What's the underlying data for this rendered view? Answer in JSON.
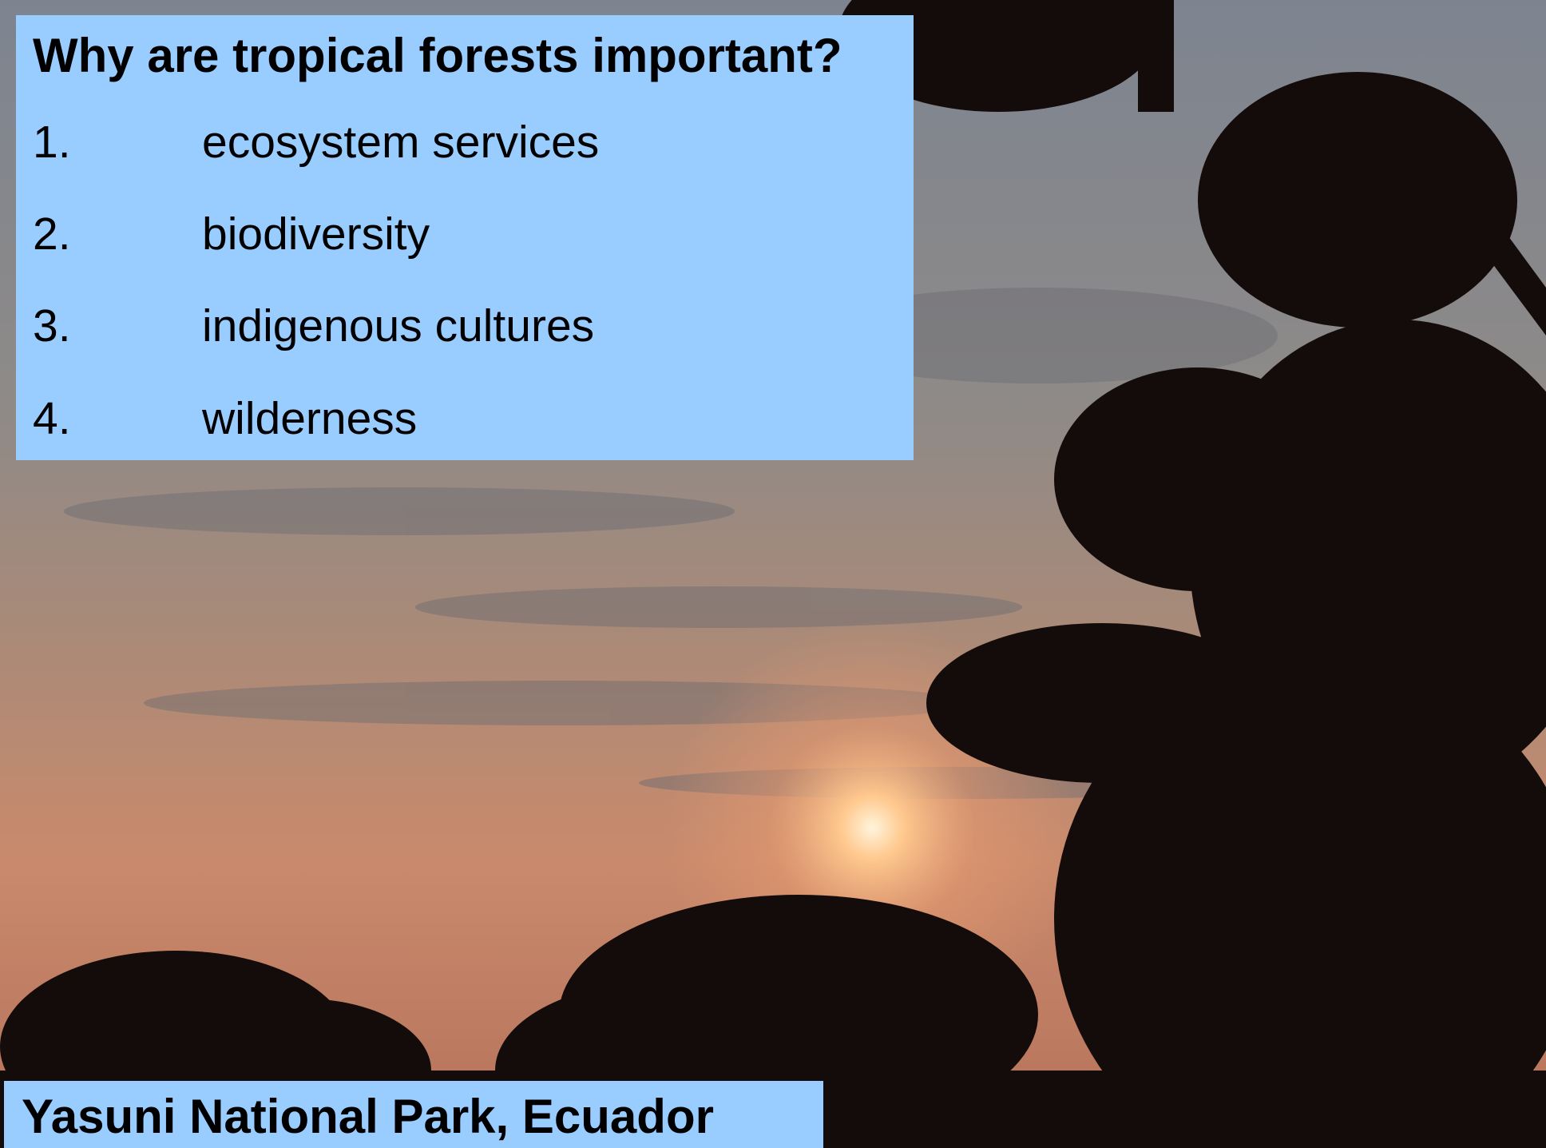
{
  "title": "Why are tropical forests important?",
  "list": [
    {
      "number": "1.",
      "text": "ecosystem services"
    },
    {
      "number": "2.",
      "text": "biodiversity"
    },
    {
      "number": "3.",
      "text": "indigenous cultures"
    },
    {
      "number": "4.",
      "text": "wilderness"
    }
  ],
  "caption": "Yasuni National Park, Ecuador"
}
